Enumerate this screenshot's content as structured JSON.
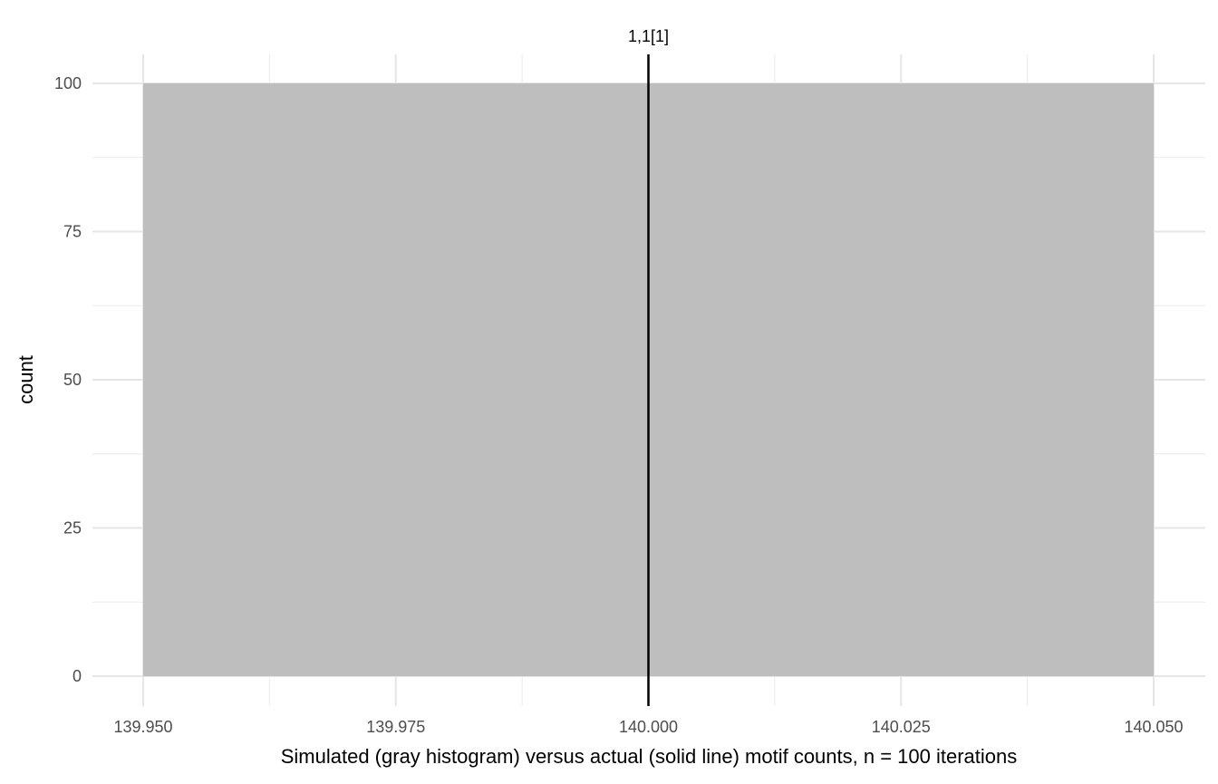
{
  "chart_data": {
    "type": "bar",
    "xlabel": "Simulated (gray histogram) versus actual (solid line) motif counts, n = 100 iterations",
    "ylabel": "count",
    "xlim": [
      139.95,
      140.05
    ],
    "ylim": [
      0,
      100
    ],
    "x_ticks": [
      "139.950",
      "139.975",
      "140.000",
      "140.025",
      "140.050"
    ],
    "y_ticks": [
      "0",
      "25",
      "50",
      "75",
      "100"
    ],
    "bins": [
      {
        "x_start": 139.95,
        "x_end": 140.05,
        "count": 100
      }
    ],
    "reference_line": {
      "x": 140.0,
      "label": "1,1[1]"
    },
    "bar_color": "#bebebe",
    "line_color": "#000000",
    "grid": true
  }
}
